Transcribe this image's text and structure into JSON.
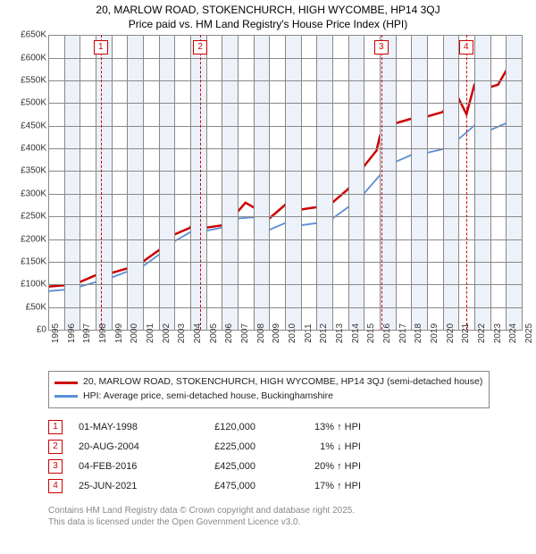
{
  "title": {
    "line1": "20, MARLOW ROAD, STOKENCHURCH, HIGH WYCOMBE, HP14 3QJ",
    "line2": "Price paid vs. HM Land Registry's House Price Index (HPI)"
  },
  "chart": {
    "type": "line",
    "background_color": "#ffffff",
    "grid_color": "#888888",
    "shade_color": "#edf2fa",
    "x": {
      "min": 1995,
      "max": 2025,
      "step": 1,
      "label_fontsize": 10
    },
    "y": {
      "min": 0,
      "max": 650000,
      "step": 50000,
      "prefix": "£",
      "suffix": "K",
      "divisor": 1000,
      "label_fontsize": 10
    },
    "series": [
      {
        "id": "property",
        "label": "20, MARLOW ROAD, STOKENCHURCH, HIGH WYCOMBE, HP14 3QJ (semi-detached house)",
        "color": "#cc0000",
        "width": 2.5,
        "points": [
          [
            1995,
            95000
          ],
          [
            1996,
            98000
          ],
          [
            1997,
            105000
          ],
          [
            1998,
            120000
          ],
          [
            1998.5,
            115000
          ],
          [
            1999,
            125000
          ],
          [
            2000,
            135000
          ],
          [
            2001,
            150000
          ],
          [
            2002,
            175000
          ],
          [
            2003,
            210000
          ],
          [
            2004,
            225000
          ],
          [
            2004.3,
            248000
          ],
          [
            2004.6,
            225000
          ],
          [
            2005,
            225000
          ],
          [
            2006,
            230000
          ],
          [
            2007,
            260000
          ],
          [
            2007.5,
            280000
          ],
          [
            2008,
            270000
          ],
          [
            2008.5,
            260000
          ],
          [
            2009,
            245000
          ],
          [
            2009.5,
            260000
          ],
          [
            2010,
            275000
          ],
          [
            2010.5,
            265000
          ],
          [
            2011,
            265000
          ],
          [
            2012,
            270000
          ],
          [
            2013,
            280000
          ],
          [
            2014,
            310000
          ],
          [
            2015,
            360000
          ],
          [
            2015.8,
            395000
          ],
          [
            2016,
            425000
          ],
          [
            2016.2,
            445000
          ],
          [
            2017,
            455000
          ],
          [
            2018,
            465000
          ],
          [
            2019,
            470000
          ],
          [
            2020,
            480000
          ],
          [
            2020.5,
            508000
          ],
          [
            2020.8,
            495000
          ],
          [
            2021,
            510000
          ],
          [
            2021.5,
            475000
          ],
          [
            2022,
            540000
          ],
          [
            2022.5,
            560000
          ],
          [
            2023,
            535000
          ],
          [
            2023.5,
            540000
          ],
          [
            2024,
            570000
          ],
          [
            2024.5,
            545000
          ],
          [
            2025,
            555000
          ]
        ]
      },
      {
        "id": "hpi",
        "label": "HPI: Average price, semi-detached house, Buckinghamshire",
        "color": "#5b8fd6",
        "width": 1.8,
        "points": [
          [
            1995,
            85000
          ],
          [
            1996,
            88000
          ],
          [
            1997,
            95000
          ],
          [
            1998,
            105000
          ],
          [
            1999,
            115000
          ],
          [
            2000,
            128000
          ],
          [
            2001,
            140000
          ],
          [
            2002,
            165000
          ],
          [
            2003,
            195000
          ],
          [
            2004,
            215000
          ],
          [
            2005,
            218000
          ],
          [
            2006,
            225000
          ],
          [
            2007,
            245000
          ],
          [
            2008,
            248000
          ],
          [
            2009,
            220000
          ],
          [
            2010,
            235000
          ],
          [
            2011,
            230000
          ],
          [
            2012,
            235000
          ],
          [
            2013,
            245000
          ],
          [
            2014,
            270000
          ],
          [
            2015,
            300000
          ],
          [
            2016,
            340000
          ],
          [
            2017,
            370000
          ],
          [
            2018,
            385000
          ],
          [
            2019,
            390000
          ],
          [
            2020,
            398000
          ],
          [
            2021,
            420000
          ],
          [
            2022,
            450000
          ],
          [
            2023,
            440000
          ],
          [
            2024,
            455000
          ],
          [
            2025,
            465000
          ]
        ]
      }
    ],
    "markers": [
      {
        "n": "1",
        "x": 1998.33
      },
      {
        "n": "2",
        "x": 2004.63
      },
      {
        "n": "3",
        "x": 2016.1
      },
      {
        "n": "4",
        "x": 2021.48
      }
    ]
  },
  "events": [
    {
      "n": "1",
      "date": "01-MAY-1998",
      "price": "£120,000",
      "delta": "13% ↑ HPI"
    },
    {
      "n": "2",
      "date": "20-AUG-2004",
      "price": "£225,000",
      "delta": "1% ↓ HPI"
    },
    {
      "n": "3",
      "date": "04-FEB-2016",
      "price": "£425,000",
      "delta": "20% ↑ HPI"
    },
    {
      "n": "4",
      "date": "25-JUN-2021",
      "price": "£475,000",
      "delta": "17% ↑ HPI"
    }
  ],
  "footer": {
    "line1": "Contains HM Land Registry data © Crown copyright and database right 2025.",
    "line2": "This data is licensed under the Open Government Licence v3.0."
  }
}
